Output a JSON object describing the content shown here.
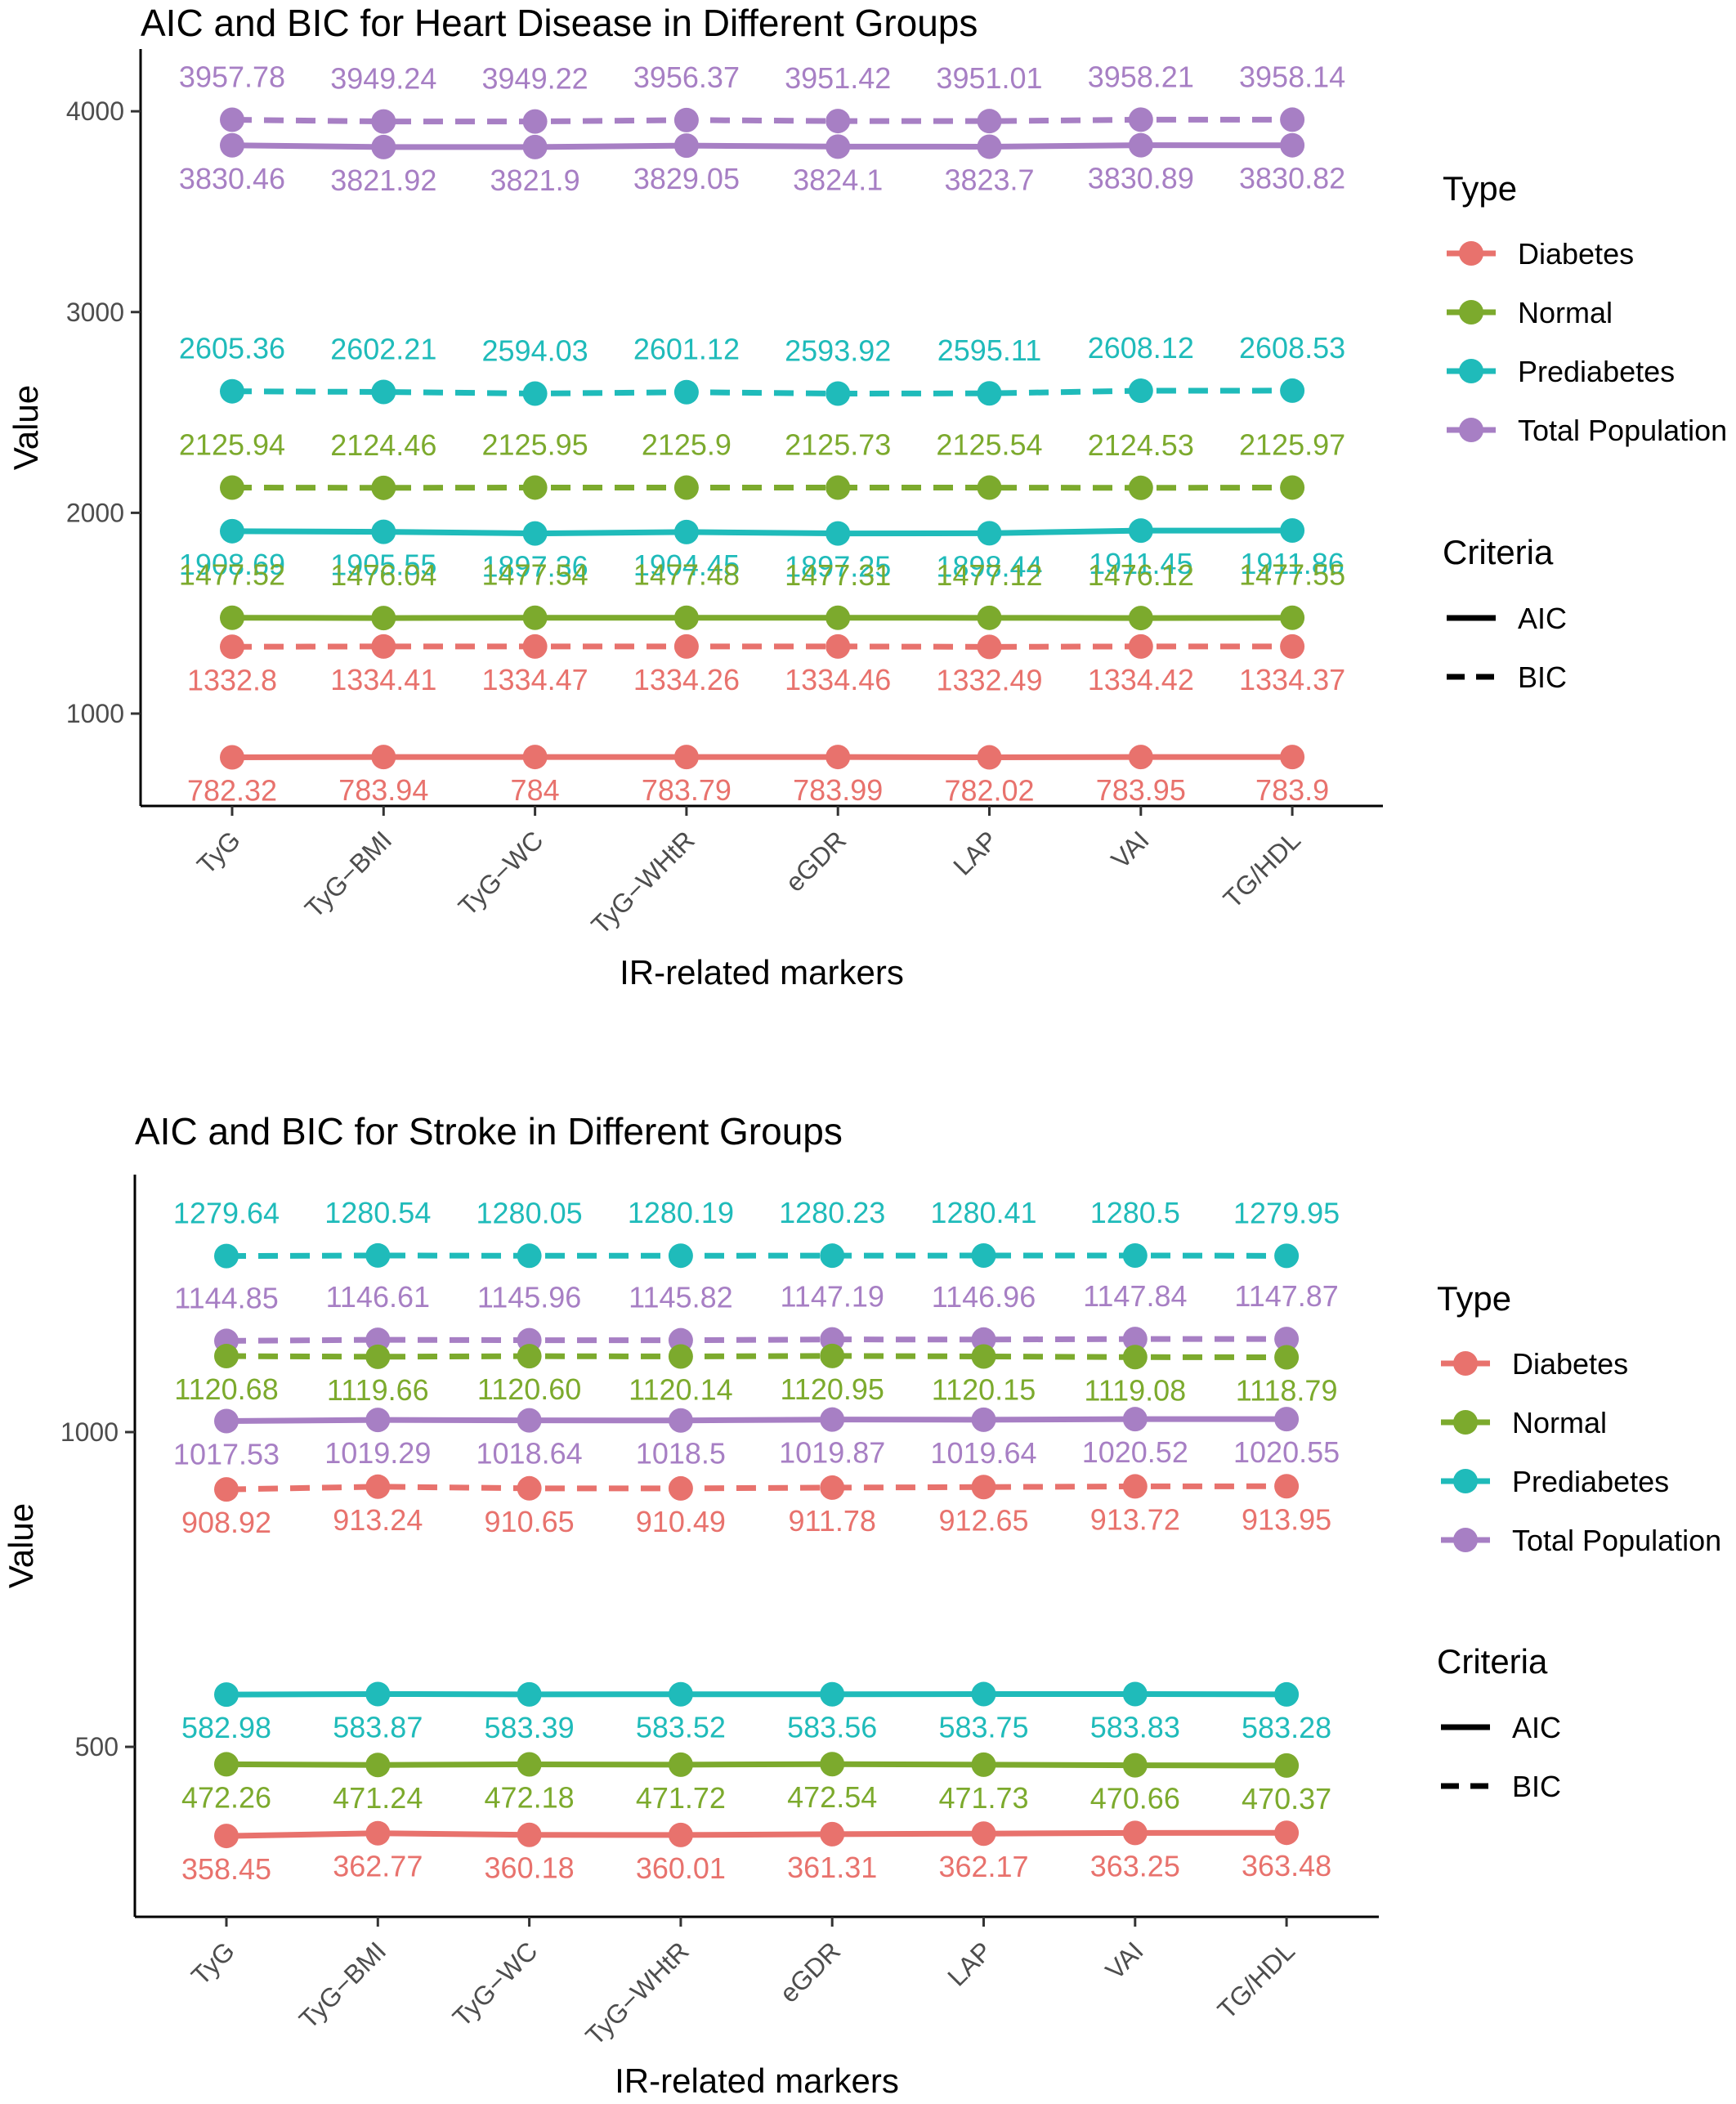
{
  "colors": {
    "Diabetes": "#E8726D",
    "Normal": "#7CAA2D",
    "Prediabetes": "#1FBBBA",
    "Total Population": "#A77FC4",
    "axis": "#000000",
    "tick_text": "#4d4d4d"
  },
  "chart_data": [
    {
      "type": "line",
      "title": "AIC and BIC for Heart Disease in Different Groups",
      "xlabel": "IR-related markers",
      "ylabel": "Value",
      "categories": [
        "TyG",
        "TyG−BMI",
        "TyG−WC",
        "TyG−WHtR",
        "eGDR",
        "LAP",
        "VAI",
        "TG/HDL"
      ],
      "ylim": [
        540,
        4310
      ],
      "yticks": [
        1000,
        2000,
        3000,
        4000
      ],
      "legend": {
        "type_title": "Type",
        "type_entries": [
          "Diabetes",
          "Normal",
          "Prediabetes",
          "Total Population"
        ],
        "criteria_title": "Criteria",
        "criteria_entries": [
          "AIC",
          "BIC"
        ],
        "position": "right"
      },
      "series": [
        {
          "group": "Total Population",
          "criteria": "BIC",
          "label_side": "above",
          "values": [
            3957.78,
            3949.24,
            3949.22,
            3956.37,
            3951.42,
            3951.01,
            3958.21,
            3958.14
          ],
          "labels": [
            "3957.78",
            "3949.24",
            "3949.22",
            "3956.37",
            "3951.42",
            "3951.01",
            "3958.21",
            "3958.14"
          ]
        },
        {
          "group": "Total Population",
          "criteria": "AIC",
          "label_side": "below",
          "values": [
            3830.46,
            3821.92,
            3821.9,
            3829.05,
            3824.1,
            3823.7,
            3830.89,
            3830.82
          ],
          "labels": [
            "3830.46",
            "3821.92",
            "3821.9",
            "3829.05",
            "3824.1",
            "3823.7",
            "3830.89",
            "3830.82"
          ]
        },
        {
          "group": "Prediabetes",
          "criteria": "BIC",
          "label_side": "above",
          "values": [
            2605.36,
            2602.21,
            2594.03,
            2601.12,
            2593.92,
            2595.11,
            2608.12,
            2608.53
          ],
          "labels": [
            "2605.36",
            "2602.21",
            "2594.03",
            "2601.12",
            "2593.92",
            "2595.11",
            "2608.12",
            "2608.53"
          ]
        },
        {
          "group": "Normal",
          "criteria": "BIC",
          "label_side": "above",
          "values": [
            2125.94,
            2124.46,
            2125.95,
            2125.9,
            2125.73,
            2125.54,
            2124.53,
            2125.97
          ],
          "labels": [
            "2125.94",
            "2124.46",
            "2125.95",
            "2125.9",
            "2125.73",
            "2125.54",
            "2124.53",
            "2125.97"
          ]
        },
        {
          "group": "Prediabetes",
          "criteria": "AIC",
          "label_side": "below",
          "values": [
            1908.69,
            1905.55,
            1897.36,
            1904.45,
            1897.25,
            1898.44,
            1911.45,
            1911.86
          ],
          "labels": [
            "1908.69",
            "1905.55",
            "1897.36",
            "1904.45",
            "1897.25",
            "1898.44",
            "1911.45",
            "1911.86"
          ]
        },
        {
          "group": "Normal",
          "criteria": "AIC",
          "label_side": "above",
          "values": [
            1477.52,
            1476.04,
            1477.54,
            1477.48,
            1477.31,
            1477.12,
            1476.12,
            1477.55
          ],
          "labels": [
            "1477.52",
            "1476.04",
            "1477.54",
            "1477.48",
            "1477.31",
            "1477.12",
            "1476.12",
            "1477.55"
          ]
        },
        {
          "group": "Diabetes",
          "criteria": "BIC",
          "label_side": "below",
          "values": [
            1332.8,
            1334.41,
            1334.47,
            1334.26,
            1334.46,
            1332.49,
            1334.42,
            1334.37
          ],
          "labels": [
            "1332.8",
            "1334.41",
            "1334.47",
            "1334.26",
            "1334.46",
            "1332.49",
            "1334.42",
            "1334.37"
          ]
        },
        {
          "group": "Diabetes",
          "criteria": "AIC",
          "label_side": "below",
          "values": [
            782.32,
            783.94,
            784,
            783.79,
            783.99,
            782.02,
            783.95,
            783.9
          ],
          "labels": [
            "782.32",
            "783.94",
            "784",
            "783.79",
            "783.99",
            "782.02",
            "783.95",
            "783.9"
          ]
        }
      ]
    },
    {
      "type": "line",
      "title": "AIC and BIC for Stroke in Different Groups",
      "xlabel": "IR-related markers",
      "ylabel": "Value",
      "categories": [
        "TyG",
        "TyG−BMI",
        "TyG−WC",
        "TyG−WHtR",
        "eGDR",
        "LAP",
        "VAI",
        "TG/HDL"
      ],
      "ylim": [
        230,
        1409
      ],
      "yticks": [
        500,
        1000
      ],
      "legend": {
        "type_title": "Type",
        "type_entries": [
          "Diabetes",
          "Normal",
          "Prediabetes",
          "Total Population"
        ],
        "criteria_title": "Criteria",
        "criteria_entries": [
          "AIC",
          "BIC"
        ],
        "position": "right"
      },
      "series": [
        {
          "group": "Prediabetes",
          "criteria": "BIC",
          "label_side": "above",
          "values": [
            1279.64,
            1280.54,
            1280.05,
            1280.19,
            1280.23,
            1280.41,
            1280.5,
            1279.95
          ],
          "labels": [
            "1279.64",
            "1280.54",
            "1280.05",
            "1280.19",
            "1280.23",
            "1280.41",
            "1280.5",
            "1279.95"
          ]
        },
        {
          "group": "Total Population",
          "criteria": "BIC",
          "label_side": "above",
          "values": [
            1144.85,
            1146.61,
            1145.96,
            1145.82,
            1147.19,
            1146.96,
            1147.84,
            1147.87
          ],
          "labels": [
            "1144.85",
            "1146.61",
            "1145.96",
            "1145.82",
            "1147.19",
            "1146.96",
            "1147.84",
            "1147.87"
          ]
        },
        {
          "group": "Normal",
          "criteria": "BIC",
          "label_side": "below",
          "values": [
            1120.68,
            1119.66,
            1120.6,
            1120.14,
            1120.95,
            1120.15,
            1119.08,
            1118.79
          ],
          "labels": [
            "1120.68",
            "1119.66",
            "1120.60",
            "1120.14",
            "1120.95",
            "1120.15",
            "1119.08",
            "1118.79"
          ]
        },
        {
          "group": "Total Population",
          "criteria": "AIC",
          "label_side": "below",
          "values": [
            1017.53,
            1019.29,
            1018.64,
            1018.5,
            1019.87,
            1019.64,
            1020.52,
            1020.55
          ],
          "labels": [
            "1017.53",
            "1019.29",
            "1018.64",
            "1018.5",
            "1019.87",
            "1019.64",
            "1020.52",
            "1020.55"
          ]
        },
        {
          "group": "Diabetes",
          "criteria": "BIC",
          "label_side": "below",
          "values": [
            908.92,
            913.24,
            910.65,
            910.49,
            911.78,
            912.65,
            913.72,
            913.95
          ],
          "labels": [
            "908.92",
            "913.24",
            "910.65",
            "910.49",
            "911.78",
            "912.65",
            "913.72",
            "913.95"
          ]
        },
        {
          "group": "Prediabetes",
          "criteria": "AIC",
          "label_side": "below",
          "values": [
            582.98,
            583.87,
            583.39,
            583.52,
            583.56,
            583.75,
            583.83,
            583.28
          ],
          "labels": [
            "582.98",
            "583.87",
            "583.39",
            "583.52",
            "583.56",
            "583.75",
            "583.83",
            "583.28"
          ]
        },
        {
          "group": "Normal",
          "criteria": "AIC",
          "label_side": "below",
          "values": [
            472.26,
            471.24,
            472.18,
            471.72,
            472.54,
            471.73,
            470.66,
            470.37
          ],
          "labels": [
            "472.26",
            "471.24",
            "472.18",
            "471.72",
            "472.54",
            "471.73",
            "470.66",
            "470.37"
          ]
        },
        {
          "group": "Diabetes",
          "criteria": "AIC",
          "label_side": "below",
          "values": [
            358.45,
            362.77,
            360.18,
            360.01,
            361.31,
            362.17,
            363.25,
            363.48
          ],
          "labels": [
            "358.45",
            "362.77",
            "360.18",
            "360.01",
            "361.31",
            "362.17",
            "363.25",
            "363.48"
          ]
        }
      ]
    }
  ]
}
